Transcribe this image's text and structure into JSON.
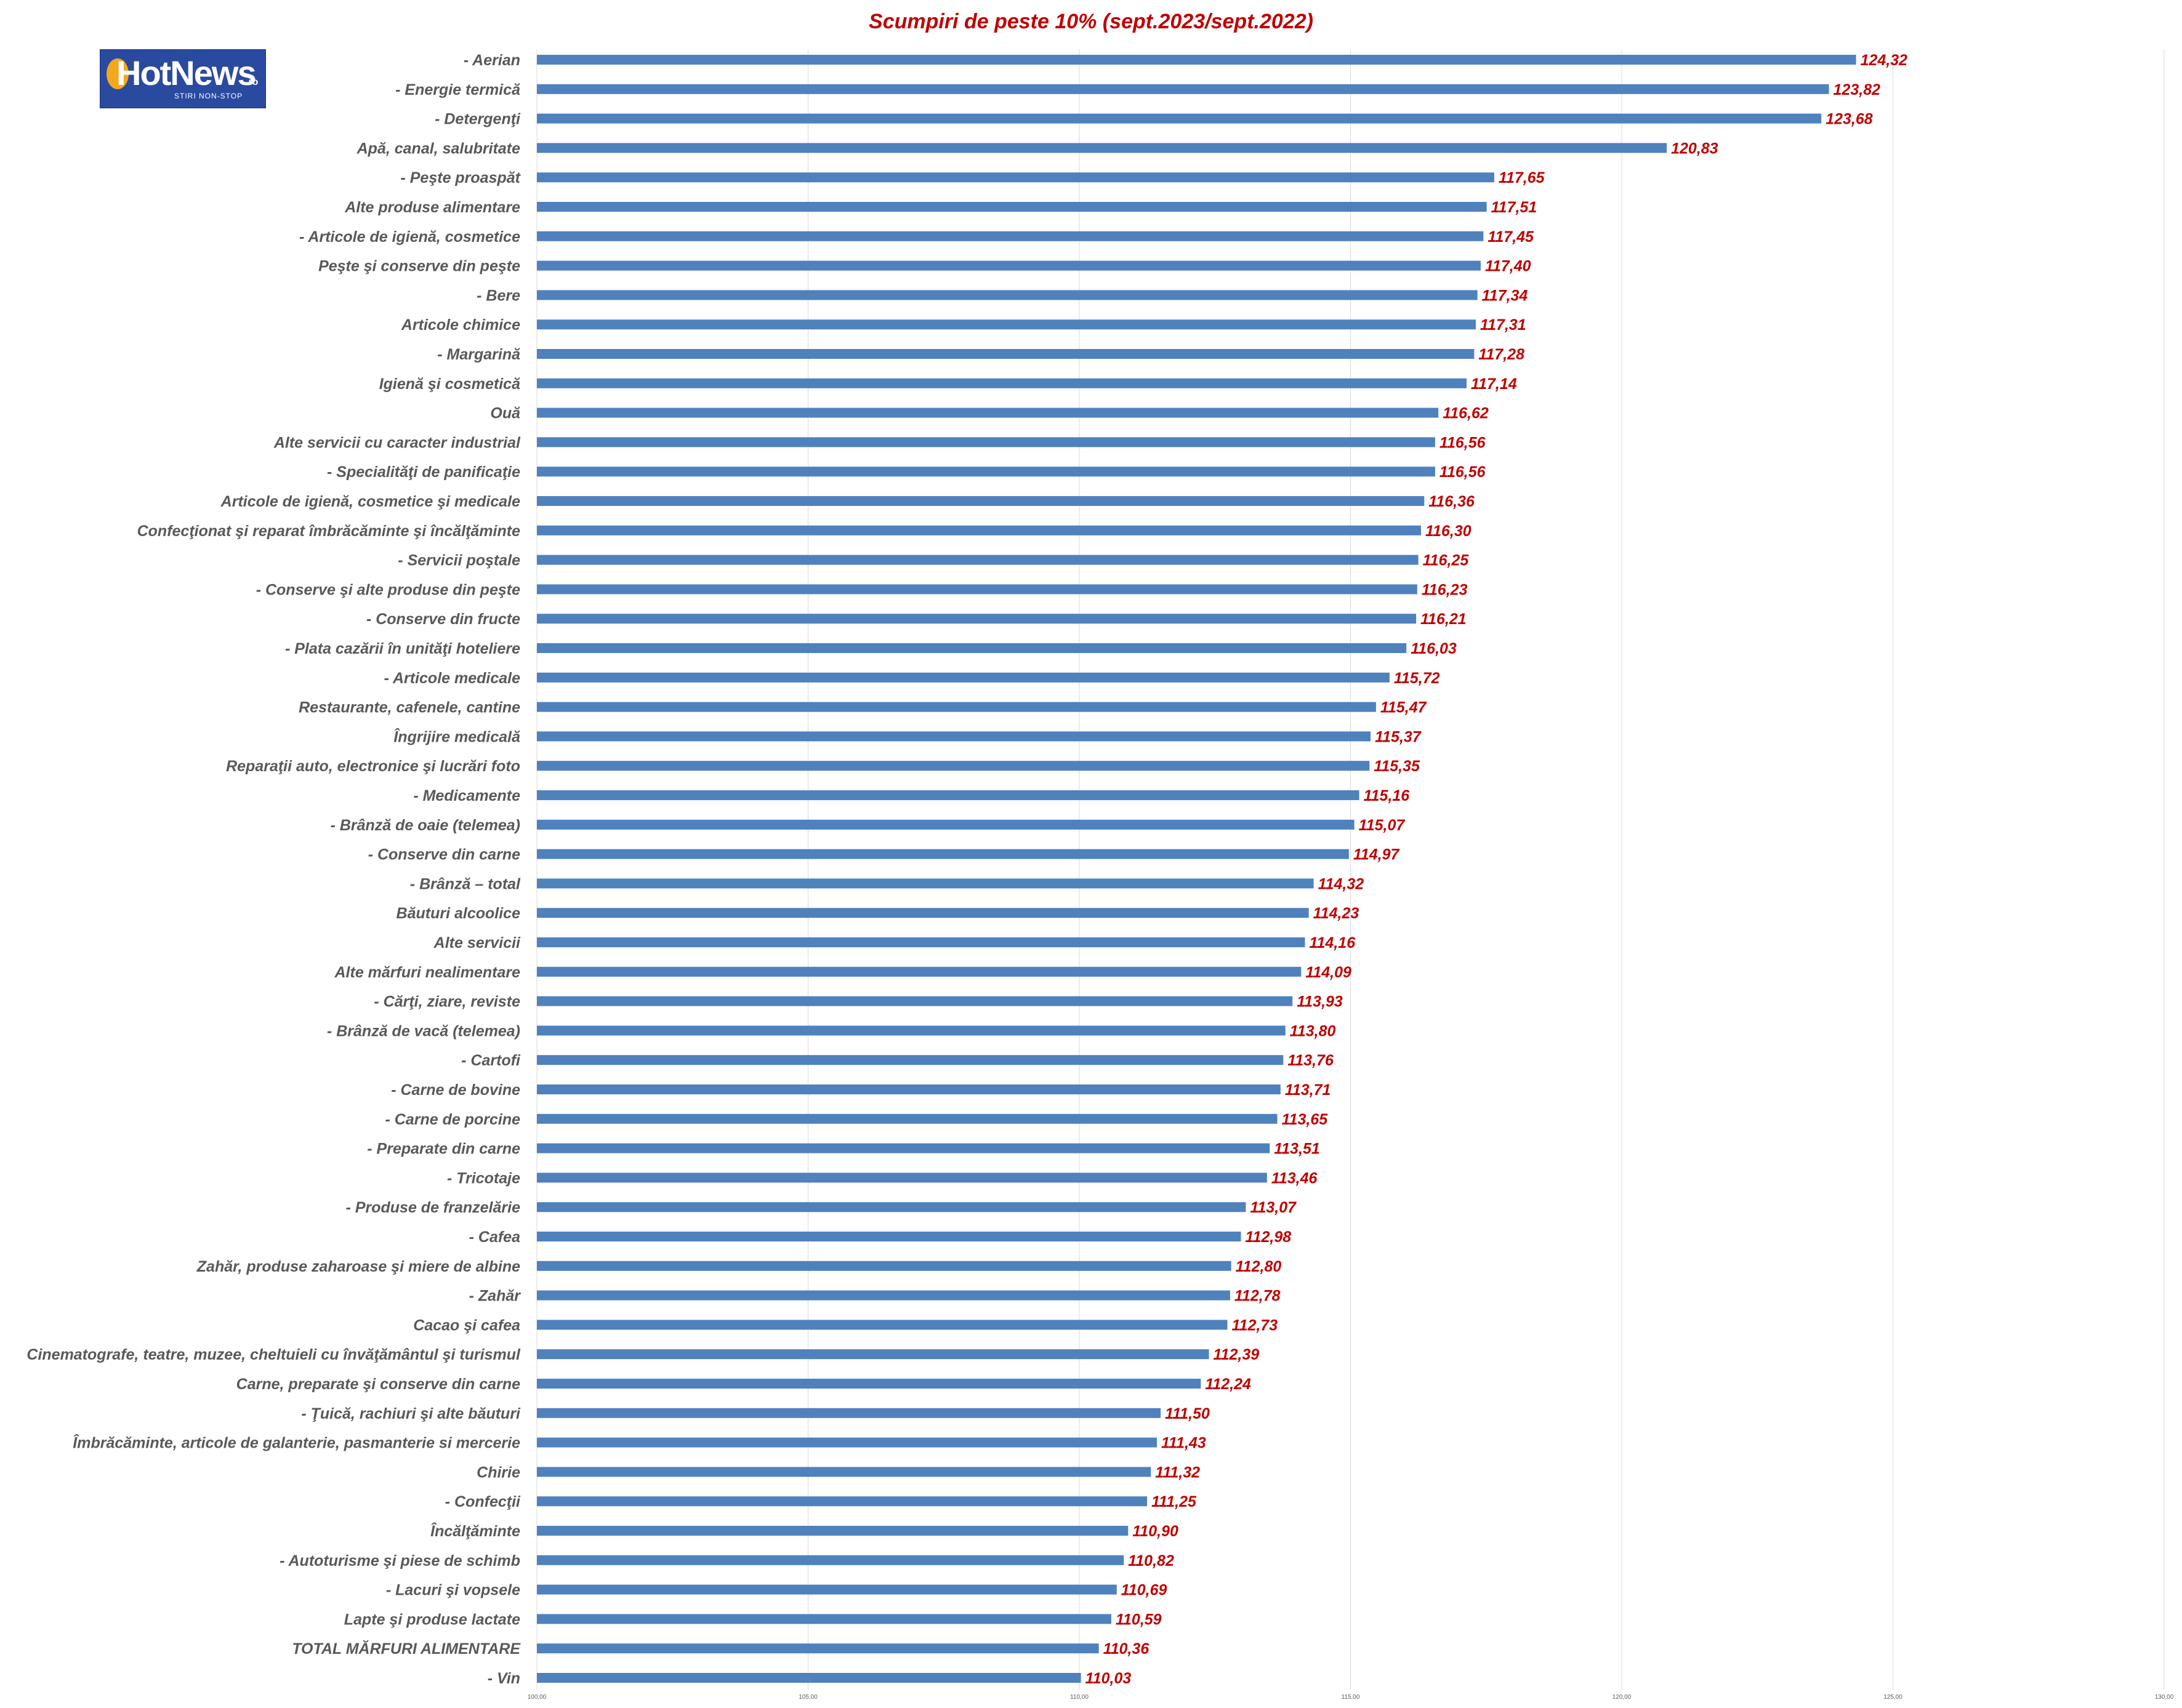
{
  "logo": {
    "text": "HotNews",
    "tld": ".ro",
    "tagline": "STIRI NON-STOP"
  },
  "colors": {
    "bar": "#4f81bd",
    "value_label": "#c00000",
    "title": "#c00000",
    "category_label": "#595959",
    "gridline": "#d9d9d9"
  },
  "chart_data": {
    "type": "bar",
    "orientation": "horizontal",
    "title": "Scumpiri de peste 10% (sept.2023/sept.2022)",
    "xlim": [
      100,
      130
    ],
    "ticks": [
      "100,00",
      "105,00",
      "110,00",
      "115,00",
      "120,00",
      "125,00",
      "130,00"
    ],
    "tick_values": [
      100,
      105,
      110,
      115,
      120,
      125,
      130
    ],
    "grid": true,
    "categories": [
      "- Aerian",
      "- Energie termică",
      "- Detergenţi",
      "Apă, canal, salubritate",
      "- Peşte proaspăt",
      "Alte produse alimentare",
      "- Articole de igienă, cosmetice",
      "Peşte şi conserve din peşte",
      "- Bere",
      "Articole chimice",
      "- Margarină",
      "Igienă şi cosmetică",
      "Ouă",
      "Alte servicii cu caracter industrial",
      "- Specialităţi de panificaţie",
      "Articole de igienă, cosmetice şi medicale",
      "Confecţionat şi reparat îmbrăcăminte şi încălţăminte",
      "- Servicii poştale",
      "- Conserve şi alte produse din peşte",
      "- Conserve din fructe",
      "- Plata cazării în unităţi hoteliere",
      "- Articole medicale",
      "Restaurante, cafenele, cantine",
      "Îngrijire medicală",
      "Reparaţii auto, electronice şi lucrări foto",
      "- Medicamente",
      "- Brânză de oaie (telemea)",
      "- Conserve din carne",
      "- Brânză – total",
      "Băuturi alcoolice",
      "Alte servicii",
      "Alte mărfuri nealimentare",
      "- Cărţi, ziare, reviste",
      "- Brânză de vacă (telemea)",
      "- Cartofi",
      "- Carne de bovine",
      "- Carne de porcine",
      "- Preparate din carne",
      "- Tricotaje",
      "- Produse de franzelărie",
      "- Cafea",
      "Zahăr, produse zaharoase şi miere de albine",
      "- Zahăr",
      "Cacao şi cafea",
      "Cinematografe, teatre, muzee, cheltuieli cu  învăţământul şi turismul",
      "Carne, preparate şi conserve din carne",
      "- Ţuică, rachiuri şi alte băuturi",
      "Îmbrăcăminte, articole de galanterie, pasmanterie si mercerie",
      "Chirie",
      "- Confecţii",
      "Încălţăminte",
      "- Autoturisme şi piese de schimb",
      "- Lacuri şi vopsele",
      "Lapte şi produse lactate",
      "TOTAL MĂRFURI ALIMENTARE",
      "- Vin"
    ],
    "values": [
      124.32,
      123.82,
      123.68,
      120.83,
      117.65,
      117.51,
      117.45,
      117.4,
      117.34,
      117.31,
      117.28,
      117.14,
      116.62,
      116.56,
      116.56,
      116.36,
      116.3,
      116.25,
      116.23,
      116.21,
      116.03,
      115.72,
      115.47,
      115.37,
      115.35,
      115.16,
      115.07,
      114.97,
      114.32,
      114.23,
      114.16,
      114.09,
      113.93,
      113.8,
      113.76,
      113.71,
      113.65,
      113.51,
      113.46,
      113.07,
      112.98,
      112.8,
      112.78,
      112.73,
      112.39,
      112.24,
      111.5,
      111.43,
      111.32,
      111.25,
      110.9,
      110.82,
      110.69,
      110.59,
      110.36,
      110.03
    ],
    "value_labels": [
      "124,32",
      "123,82",
      "123,68",
      "120,83",
      "117,65",
      "117,51",
      "117,45",
      "117,40",
      "117,34",
      "117,31",
      "117,28",
      "117,14",
      "116,62",
      "116,56",
      "116,56",
      "116,36",
      "116,30",
      "116,25",
      "116,23",
      "116,21",
      "116,03",
      "115,72",
      "115,47",
      "115,37",
      "115,35",
      "115,16",
      "115,07",
      "114,97",
      "114,32",
      "114,23",
      "114,16",
      "114,09",
      "113,93",
      "113,80",
      "113,76",
      "113,71",
      "113,65",
      "113,51",
      "113,46",
      "113,07",
      "112,98",
      "112,80",
      "112,78",
      "112,73",
      "112,39",
      "112,24",
      "111,50",
      "111,43",
      "111,32",
      "111,25",
      "110,90",
      "110,82",
      "110,69",
      "110,59",
      "110,36",
      "110,03"
    ]
  }
}
